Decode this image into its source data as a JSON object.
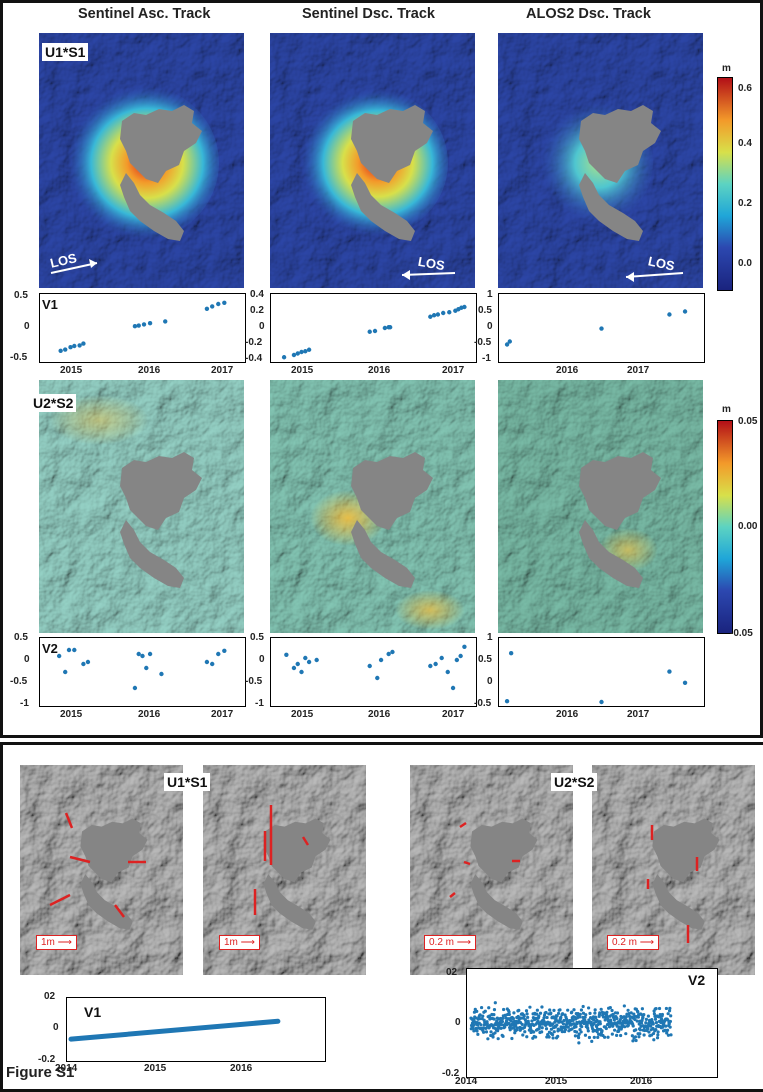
{
  "column_titles": [
    "Sentinel Asc. Track",
    "Sentinel Dsc. Track",
    "ALOS2 Dsc. Track"
  ],
  "panel_labels": {
    "u1s1": "U1*S1",
    "v1": "V1",
    "u2s2": "U2*S2",
    "v2": "V2"
  },
  "los_label": "LOS",
  "colorbar1": {
    "unit": "m",
    "ticks": [
      "0.6",
      "0.4",
      "0.2",
      "0.0"
    ],
    "range": [
      -0.1,
      0.6
    ]
  },
  "colorbar2": {
    "unit": "m",
    "ticks": [
      "0.05",
      "0.00",
      "-0.05"
    ],
    "range": [
      -0.05,
      0.05
    ]
  },
  "bottom": {
    "u1s1_label": "U1*S1",
    "u2s2_label": "U2*S2",
    "scale_1m": "1m",
    "scale_02m": "0.2 m",
    "v1_label": "V1",
    "v2_label": "V2"
  },
  "figure_label": "Figure S1",
  "colors": {
    "dots": "#1f77b4",
    "arrow": "#dd2222",
    "mask": "#858585"
  },
  "chart_data": [
    {
      "type": "scatter",
      "name": "V1 Sentinel Asc.",
      "xlim": [
        2014.7,
        2017.3
      ],
      "ylim": [
        -0.5,
        0.5
      ],
      "yticks": [
        "0.5",
        "0",
        "-0.5"
      ],
      "xticks": [
        "2015",
        "2016",
        "2017"
      ],
      "x": [
        2014.92,
        2014.98,
        2015.05,
        2015.1,
        2015.17,
        2015.22,
        2015.9,
        2015.95,
        2016.02,
        2016.1,
        2016.3,
        2016.85,
        2016.92,
        2017.0,
        2017.08
      ],
      "y": [
        -0.38,
        -0.36,
        -0.32,
        -0.3,
        -0.29,
        -0.26,
        0.03,
        0.04,
        0.06,
        0.08,
        0.11,
        0.32,
        0.36,
        0.4,
        0.42
      ]
    },
    {
      "type": "scatter",
      "name": "V1 Sentinel Dsc.",
      "xlim": [
        2014.7,
        2017.3
      ],
      "ylim": [
        -0.4,
        0.4
      ],
      "yticks": [
        "0.4",
        "0.2",
        "0",
        "-0.2",
        "-0.4"
      ],
      "xticks": [
        "2015",
        "2016",
        "2017"
      ],
      "x": [
        2014.82,
        2014.95,
        2015.0,
        2015.05,
        2015.1,
        2015.15,
        2015.95,
        2016.02,
        2016.15,
        2016.2,
        2016.22,
        2016.75,
        2016.8,
        2016.85,
        2016.92,
        2017.0,
        2017.08,
        2017.12,
        2017.16,
        2017.2
      ],
      "y": [
        -0.39,
        -0.36,
        -0.34,
        -0.32,
        -0.31,
        -0.29,
        -0.05,
        -0.04,
        0.0,
        0.01,
        0.01,
        0.15,
        0.17,
        0.18,
        0.2,
        0.21,
        0.23,
        0.25,
        0.27,
        0.28
      ]
    },
    {
      "type": "scatter",
      "name": "V1 ALOS2 Dsc.",
      "xlim": [
        2014.7,
        2017.6
      ],
      "ylim": [
        -1,
        1
      ],
      "yticks": [
        "1",
        "0.5",
        "0",
        "-0.5",
        "-1"
      ],
      "xticks": [
        "2016",
        "2017"
      ],
      "x": [
        2014.76,
        2014.8,
        2016.15,
        2017.15,
        2017.38
      ],
      "y": [
        -0.55,
        -0.45,
        -0.02,
        0.45,
        0.55
      ]
    },
    {
      "type": "scatter",
      "name": "V2 Sentinel Asc.",
      "xlim": [
        2014.7,
        2017.3
      ],
      "ylim": [
        -1,
        0.5
      ],
      "yticks": [
        "0.5",
        "0",
        "-0.5",
        "-1"
      ],
      "xticks": [
        "2015",
        "2016",
        "2017"
      ],
      "x": [
        2014.9,
        2014.98,
        2015.03,
        2015.1,
        2015.22,
        2015.28,
        2015.9,
        2015.95,
        2016.0,
        2016.05,
        2016.1,
        2016.25,
        2016.85,
        2016.92,
        2017.0,
        2017.08
      ],
      "y": [
        0.15,
        -0.25,
        0.3,
        0.3,
        -0.05,
        0.0,
        -0.65,
        0.2,
        0.15,
        -0.15,
        0.2,
        -0.3,
        0.0,
        -0.05,
        0.2,
        0.28
      ]
    },
    {
      "type": "scatter",
      "name": "V2 Sentinel Dsc.",
      "xlim": [
        2014.7,
        2017.3
      ],
      "ylim": [
        -1,
        0.5
      ],
      "yticks": [
        "0.5",
        "0",
        "-0.5",
        "-1"
      ],
      "xticks": [
        "2015",
        "2016",
        "2017"
      ],
      "x": [
        2014.85,
        2014.95,
        2015.0,
        2015.05,
        2015.1,
        2015.15,
        2015.25,
        2015.95,
        2016.05,
        2016.1,
        2016.2,
        2016.25,
        2016.75,
        2016.82,
        2016.9,
        2016.98,
        2017.05,
        2017.1,
        2017.15,
        2017.2
      ],
      "y": [
        0.18,
        -0.15,
        -0.05,
        -0.25,
        0.1,
        0.0,
        0.05,
        -0.1,
        -0.4,
        0.05,
        0.2,
        0.25,
        -0.1,
        -0.05,
        0.1,
        -0.25,
        -0.65,
        0.05,
        0.15,
        0.38
      ]
    },
    {
      "type": "scatter",
      "name": "V2 ALOS2 Dsc.",
      "xlim": [
        2014.7,
        2017.6
      ],
      "ylim": [
        -0.5,
        1
      ],
      "yticks": [
        "1",
        "0.5",
        "0",
        "-0.5"
      ],
      "xticks": [
        "2016",
        "2017"
      ],
      "x": [
        2014.76,
        2014.82,
        2016.15,
        2017.15,
        2017.38
      ],
      "y": [
        -0.48,
        0.72,
        -0.5,
        0.26,
        -0.02
      ]
    },
    {
      "type": "line",
      "name": "V1 bottom",
      "xlim": [
        2014,
        2016.9
      ],
      "ylim": [
        -0.2,
        0.2
      ],
      "yticks": [
        "02",
        "0",
        "-0.2"
      ],
      "xticks": [
        "2014",
        "2015",
        "2016"
      ],
      "x": [
        2014.0,
        2016.4
      ],
      "y": [
        -0.07,
        0.06
      ]
    },
    {
      "type": "scatter",
      "name": "V2 bottom",
      "xlim": [
        2014,
        2016.9
      ],
      "ylim": [
        -0.2,
        0.2
      ],
      "yticks": [
        "02",
        "0",
        "-0.2"
      ],
      "xticks": [
        "2014",
        "2015",
        "2016"
      ],
      "x_range": [
        2014.0,
        2016.4
      ],
      "noise_sd": 0.035,
      "point_count": 700
    }
  ]
}
